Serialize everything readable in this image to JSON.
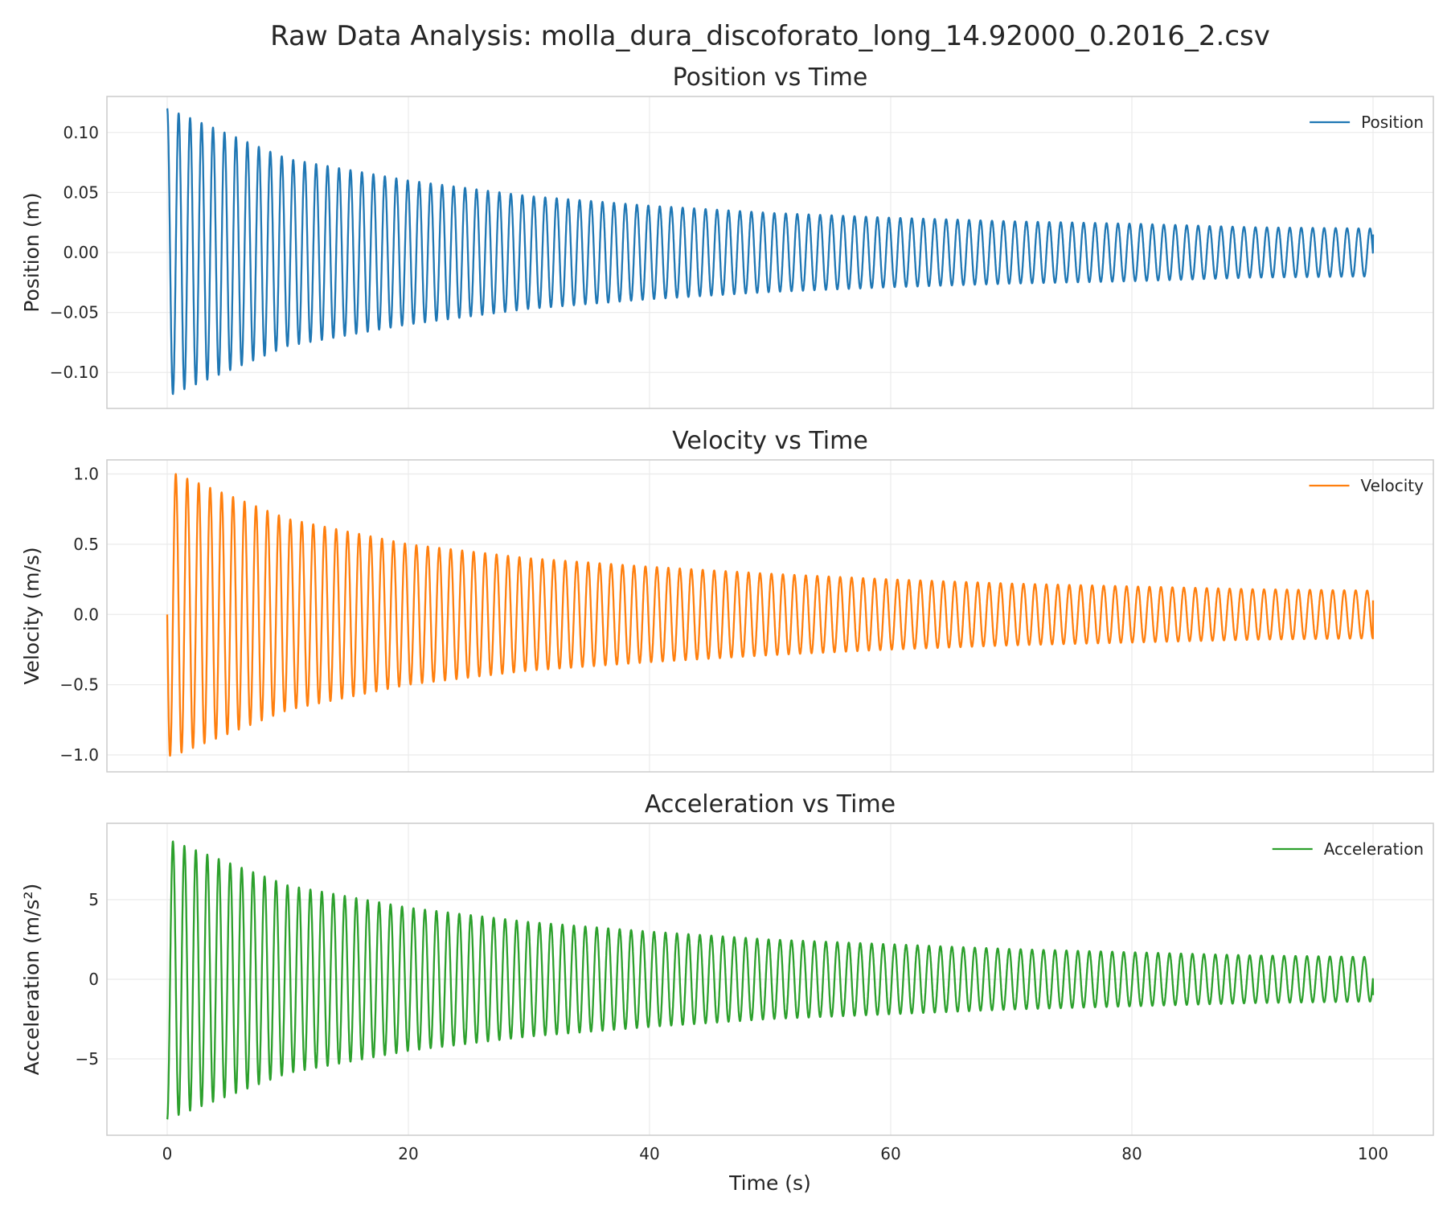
{
  "suptitle": "Raw Data Analysis: molla_dura_discoforato_long_14.92000_0.2016_2.csv",
  "chart_data": [
    {
      "type": "line",
      "title": "Position vs Time",
      "xlabel": "",
      "ylabel": "Position (m)",
      "xlim": [
        -5,
        105
      ],
      "ylim": [
        -0.13,
        0.13
      ],
      "xticks": [
        0,
        20,
        40,
        60,
        80,
        100
      ],
      "xtick_labels": [],
      "yticks": [
        -0.1,
        -0.05,
        0.0,
        0.05,
        0.1
      ],
      "ytick_labels": [
        "−0.10",
        "−0.05",
        "0.00",
        "0.05",
        "0.10"
      ],
      "grid": true,
      "legend": "top-right",
      "series": [
        {
          "name": "Position",
          "color": "#1f77b4",
          "signal": {
            "kind": "cos",
            "period_s": 0.95,
            "t_start": 0,
            "t_end": 100
          },
          "envelope": {
            "t": [
              0,
              10,
              20,
              30,
              40,
              50,
              60,
              70,
              80,
              90,
              100
            ],
            "amplitude": [
              0.12,
              0.078,
              0.06,
              0.047,
              0.039,
              0.033,
              0.029,
              0.026,
              0.024,
              0.021,
              0.02
            ]
          },
          "end_value": 0.015
        }
      ]
    },
    {
      "type": "line",
      "title": "Velocity vs Time",
      "xlabel": "",
      "ylabel": "Velocity (m/s)",
      "xlim": [
        -5,
        105
      ],
      "ylim": [
        -1.12,
        1.1
      ],
      "xticks": [
        0,
        20,
        40,
        60,
        80,
        100
      ],
      "xtick_labels": [],
      "yticks": [
        -1.0,
        -0.5,
        0.0,
        0.5,
        1.0
      ],
      "ytick_labels": [
        "−1.0",
        "−0.5",
        "0.0",
        "0.5",
        "1.0"
      ],
      "grid": true,
      "legend": "top-right",
      "series": [
        {
          "name": "Velocity",
          "color": "#ff7f0e",
          "signal": {
            "kind": "sin",
            "period_s": 0.95,
            "t_start": 0,
            "t_end": 100
          },
          "envelope": {
            "t": [
              0,
              0.4,
              10,
              20,
              30,
              40,
              50,
              60,
              70,
              80,
              90,
              100
            ],
            "amplitude": [
              1.0,
              1.01,
              0.68,
              0.5,
              0.4,
              0.34,
              0.29,
              0.25,
              0.22,
              0.2,
              0.18,
              0.17
            ]
          },
          "end_value": 0.1
        }
      ]
    },
    {
      "type": "line",
      "title": "Acceleration vs Time",
      "xlabel": "Time (s)",
      "ylabel": "Acceleration (m/s²)",
      "xlim": [
        -5,
        105
      ],
      "ylim": [
        -9.8,
        9.8
      ],
      "xticks": [
        0,
        20,
        40,
        60,
        80,
        100
      ],
      "xtick_labels": [
        "0",
        "20",
        "40",
        "60",
        "80",
        "100"
      ],
      "yticks": [
        -5,
        0,
        5
      ],
      "ytick_labels": [
        "−5",
        "0",
        "5"
      ],
      "grid": true,
      "legend": "top-right",
      "series": [
        {
          "name": "Acceleration",
          "color": "#2ca02c",
          "signal": {
            "kind": "-cos",
            "period_s": 0.95,
            "t_start": 0,
            "t_end": 100
          },
          "envelope": {
            "t": [
              0,
              10,
              20,
              30,
              40,
              50,
              60,
              70,
              80,
              90,
              100
            ],
            "amplitude": [
              8.8,
              5.9,
              4.5,
              3.6,
              3.0,
              2.5,
              2.2,
              1.9,
              1.7,
              1.5,
              1.4
            ]
          },
          "end_value": -1.0
        }
      ]
    }
  ]
}
